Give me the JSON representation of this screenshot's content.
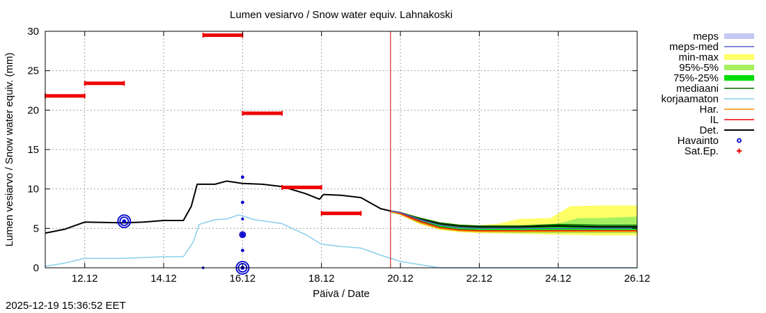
{
  "chart_data": {
    "type": "line",
    "title": "Lumen vesiarvo / Snow water equiv.  Lahnakoski",
    "xlabel": "Päivä / Date",
    "ylabel": "Lumen vesiarvo / Snow water equiv. (mm)",
    "x_unit": "days since 11.12 00:00",
    "xlim": [
      0,
      15
    ],
    "ylim": [
      0,
      30
    ],
    "yticks": [
      0,
      5,
      10,
      15,
      20,
      25,
      30
    ],
    "xticks": [
      {
        "x": 1,
        "label": "12.12"
      },
      {
        "x": 3,
        "label": "14.12"
      },
      {
        "x": 5,
        "label": "16.12"
      },
      {
        "x": 7,
        "label": "18.12"
      },
      {
        "x": 9,
        "label": "20.12"
      },
      {
        "x": 11,
        "label": "22.12"
      },
      {
        "x": 13,
        "label": "24.12"
      },
      {
        "x": 15,
        "label": "26.12"
      }
    ],
    "grid": true,
    "now_line_x": 8.75,
    "legend": {
      "placement": "right",
      "items": [
        {
          "label": "meps",
          "color": "#c4c8f4",
          "style": "band"
        },
        {
          "label": "meps-med",
          "color": "#5560c8",
          "style": "line"
        },
        {
          "label": "min-max",
          "color": "#ffff66",
          "style": "band"
        },
        {
          "label": "95%-5%",
          "color": "#a4f060",
          "style": "band"
        },
        {
          "label": "75%-25%",
          "color": "#00dd00",
          "style": "band"
        },
        {
          "label": "mediaani",
          "color": "#006600",
          "style": "line"
        },
        {
          "label": "korjaamaton",
          "color": "#87ceeb",
          "style": "line"
        },
        {
          "label": "Har.",
          "color": "#ff8c00",
          "style": "line"
        },
        {
          "label": "IL",
          "color": "#ee0000",
          "style": "line"
        },
        {
          "label": "Det.",
          "color": "#000000",
          "style": "line"
        },
        {
          "label": "Havainto",
          "color": "#0000cc",
          "style": "circle"
        },
        {
          "label": "Sat.Ep.",
          "color": "#ee0000",
          "style": "plus"
        }
      ]
    },
    "series": [
      {
        "name": "Det.",
        "color": "#000000",
        "points": [
          [
            0,
            4.4
          ],
          [
            0.5,
            4.9
          ],
          [
            1,
            5.8
          ],
          [
            2,
            5.7
          ],
          [
            2.5,
            5.8
          ],
          [
            3,
            6.0
          ],
          [
            3.5,
            6.0
          ],
          [
            3.7,
            7.8
          ],
          [
            3.85,
            10.6
          ],
          [
            4.3,
            10.6
          ],
          [
            4.6,
            11.0
          ],
          [
            5,
            10.7
          ],
          [
            5.5,
            10.6
          ],
          [
            6,
            10.3
          ],
          [
            6.6,
            9.4
          ],
          [
            6.95,
            8.7
          ],
          [
            7.05,
            9.3
          ],
          [
            7.5,
            9.2
          ],
          [
            8,
            8.9
          ],
          [
            8.5,
            7.5
          ],
          [
            8.75,
            7.2
          ],
          [
            9,
            7.0
          ],
          [
            9.5,
            6.2
          ],
          [
            10,
            5.6
          ],
          [
            10.5,
            5.3
          ],
          [
            11,
            5.2
          ],
          [
            12,
            5.2
          ],
          [
            13,
            5.3
          ],
          [
            14,
            5.2
          ],
          [
            15,
            5.2
          ]
        ]
      },
      {
        "name": "korjaamaton",
        "color": "#87ceeb",
        "points": [
          [
            0,
            0.2
          ],
          [
            0.5,
            0.6
          ],
          [
            1,
            1.2
          ],
          [
            2,
            1.2
          ],
          [
            3,
            1.4
          ],
          [
            3.5,
            1.4
          ],
          [
            3.75,
            3.3
          ],
          [
            3.9,
            5.5
          ],
          [
            4.3,
            6.1
          ],
          [
            4.6,
            6.2
          ],
          [
            4.9,
            6.7
          ],
          [
            5,
            6.6
          ],
          [
            5.3,
            6.1
          ],
          [
            6,
            5.6
          ],
          [
            6.6,
            4.2
          ],
          [
            7,
            3.0
          ],
          [
            7.5,
            2.7
          ],
          [
            8,
            2.5
          ],
          [
            8.5,
            1.6
          ],
          [
            9,
            0.8
          ],
          [
            9.5,
            0.4
          ],
          [
            10,
            0
          ],
          [
            15,
            0
          ]
        ]
      },
      {
        "name": "mediaani",
        "color": "#006600",
        "points": [
          [
            8.75,
            7.2
          ],
          [
            9,
            7.0
          ],
          [
            9.5,
            6.3
          ],
          [
            10,
            5.7
          ],
          [
            10.5,
            5.4
          ],
          [
            11,
            5.3
          ],
          [
            12,
            5.3
          ],
          [
            13,
            5.5
          ],
          [
            14,
            5.4
          ],
          [
            15,
            5.4
          ]
        ]
      },
      {
        "name": "IL",
        "color": "#ee0000",
        "points": [
          [
            8.75,
            7.1
          ],
          [
            9,
            6.9
          ],
          [
            9.5,
            5.9
          ],
          [
            10,
            5.1
          ],
          [
            10.5,
            4.8
          ],
          [
            11,
            4.7
          ],
          [
            15,
            4.7
          ]
        ]
      },
      {
        "name": "Har.",
        "color": "#ff8c00",
        "points": [
          [
            8.75,
            7.1
          ],
          [
            9,
            6.8
          ],
          [
            9.5,
            5.7
          ],
          [
            10,
            5.0
          ],
          [
            10.5,
            4.7
          ],
          [
            11,
            4.6
          ],
          [
            15,
            4.6
          ]
        ]
      },
      {
        "name": "meps-med",
        "color": "#5560c8",
        "points": [
          [
            8.75,
            7.2
          ],
          [
            9,
            7.0
          ],
          [
            9.5,
            6.1
          ],
          [
            10,
            5.4
          ],
          [
            10.5,
            5.1
          ],
          [
            11,
            5.0
          ],
          [
            15,
            5.0
          ]
        ]
      }
    ],
    "bands": [
      {
        "name": "min-max",
        "color": "#ffff66",
        "upper": [
          [
            8.75,
            7.3
          ],
          [
            9,
            7.1
          ],
          [
            9.5,
            6.4
          ],
          [
            10,
            5.8
          ],
          [
            10.5,
            5.5
          ],
          [
            11,
            5.4
          ],
          [
            11.5,
            5.6
          ],
          [
            12,
            6.2
          ],
          [
            12.8,
            6.3
          ],
          [
            13.3,
            7.8
          ],
          [
            14,
            7.9
          ],
          [
            15,
            7.9
          ]
        ],
        "lower": [
          [
            8.75,
            7.0
          ],
          [
            9,
            6.7
          ],
          [
            9.5,
            5.5
          ],
          [
            10,
            4.8
          ],
          [
            10.5,
            4.5
          ],
          [
            11,
            4.4
          ],
          [
            12,
            4.3
          ],
          [
            13,
            4.2
          ],
          [
            14,
            4.1
          ],
          [
            15,
            4.1
          ]
        ]
      },
      {
        "name": "95%-5%",
        "color": "#a4f060",
        "upper": [
          [
            8.75,
            7.2
          ],
          [
            9,
            7.0
          ],
          [
            9.5,
            6.3
          ],
          [
            10,
            5.7
          ],
          [
            10.5,
            5.4
          ],
          [
            11,
            5.3
          ],
          [
            12,
            5.3
          ],
          [
            13,
            5.6
          ],
          [
            13.5,
            6.3
          ],
          [
            14,
            6.3
          ],
          [
            15,
            6.5
          ]
        ],
        "lower": [
          [
            8.75,
            7.0
          ],
          [
            9,
            6.7
          ],
          [
            9.5,
            5.6
          ],
          [
            10,
            4.9
          ],
          [
            10.5,
            4.6
          ],
          [
            11,
            4.5
          ],
          [
            12,
            4.4
          ],
          [
            15,
            4.4
          ]
        ]
      },
      {
        "name": "75%-25%",
        "color": "#00dd00",
        "upper": [
          [
            8.75,
            7.2
          ],
          [
            9,
            7.0
          ],
          [
            9.5,
            6.2
          ],
          [
            10,
            5.6
          ],
          [
            10.5,
            5.3
          ],
          [
            11,
            5.2
          ],
          [
            12,
            5.3
          ],
          [
            13,
            5.5
          ],
          [
            14,
            5.3
          ],
          [
            15,
            5.3
          ]
        ],
        "lower": [
          [
            8.75,
            7.1
          ],
          [
            9,
            6.8
          ],
          [
            9.5,
            5.8
          ],
          [
            10,
            5.1
          ],
          [
            10.5,
            4.8
          ],
          [
            11,
            4.8
          ],
          [
            15,
            4.8
          ]
        ]
      }
    ],
    "havainto": [
      {
        "x": 2.0,
        "y": 5.9,
        "r": 9
      },
      {
        "x": 2.0,
        "y": 5.9,
        "r": 6
      },
      {
        "x": 2.0,
        "y": 5.9,
        "r": 2
      },
      {
        "x": 5.0,
        "y": 0.0,
        "r": 9
      },
      {
        "x": 5.0,
        "y": 0.0,
        "r": 6
      },
      {
        "x": 5.0,
        "y": 0.0,
        "r": 2
      },
      {
        "x": 5.0,
        "y": 4.2,
        "r": 4
      },
      {
        "x": 5.0,
        "y": 4.2,
        "r": 2
      },
      {
        "x": 5.0,
        "y": 2.2,
        "r": 1.5
      },
      {
        "x": 5.0,
        "y": 6.2,
        "r": 1.2
      },
      {
        "x": 5.0,
        "y": 8.3,
        "r": 1.5
      },
      {
        "x": 5.0,
        "y": 11.5,
        "r": 1.5
      },
      {
        "x": 4.0,
        "y": 0.0,
        "r": 1
      }
    ],
    "sat_ep": [
      {
        "x_start": 0.0,
        "x_end": 1.0,
        "y": 21.8
      },
      {
        "x_start": 1.0,
        "x_end": 2.0,
        "y": 23.4
      },
      {
        "x_start": 4.0,
        "x_end": 5.0,
        "y": 29.5
      },
      {
        "x_start": 5.0,
        "x_end": 6.0,
        "y": 19.6
      },
      {
        "x_start": 6.0,
        "x_end": 7.0,
        "y": 10.2
      },
      {
        "x_start": 7.0,
        "x_end": 8.0,
        "y": 6.9
      }
    ]
  },
  "timestamp": "2025-12-19 15:36:52 EET"
}
